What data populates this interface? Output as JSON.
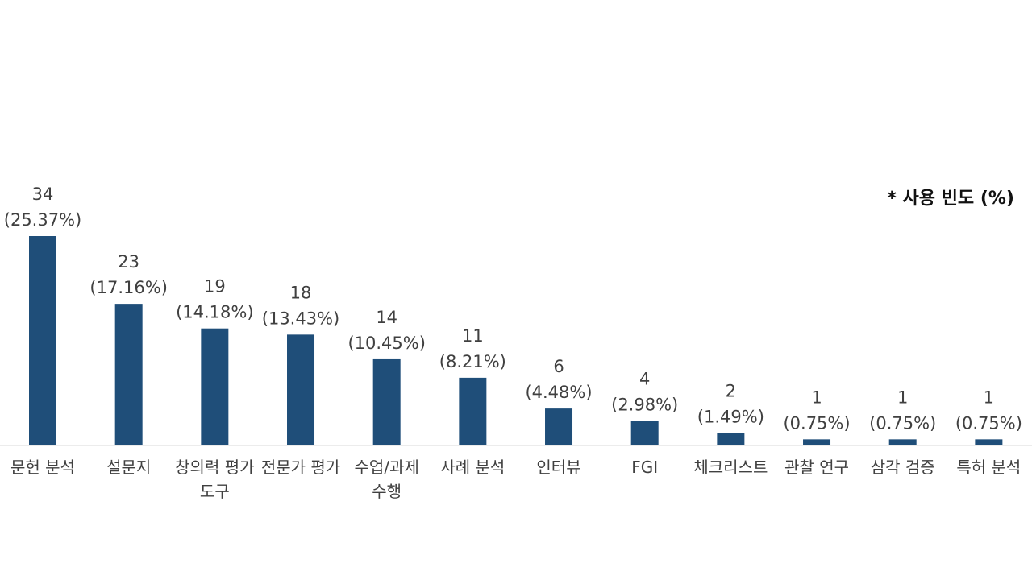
{
  "note": "* 사용 빈도 (%)",
  "colors": {
    "bar": "#1f4e79",
    "axis": "#d9d9d9",
    "text": "#404040"
  },
  "chart_data": {
    "type": "bar",
    "title": "",
    "xlabel": "",
    "ylabel": "",
    "ylim": [
      0,
      34
    ],
    "grid": false,
    "categories": [
      [
        "문헌 분석"
      ],
      [
        "설문지"
      ],
      [
        "창의력 평가",
        "도구"
      ],
      [
        "전문가 평가"
      ],
      [
        "수업/과제",
        "수행"
      ],
      [
        "사례 분석"
      ],
      [
        "인터뷰"
      ],
      [
        "FGI"
      ],
      [
        "체크리스트"
      ],
      [
        "관찰 연구"
      ],
      [
        "삼각 검증"
      ],
      [
        "특허 분석"
      ]
    ],
    "values": [
      34,
      23,
      19,
      18,
      14,
      11,
      6,
      4,
      2,
      1,
      1,
      1
    ],
    "percent_labels": [
      "(25.37%)",
      "(17.16%)",
      "(14.18%)",
      "(13.43%)",
      "(10.45%)",
      "(8.21%)",
      "(4.48%)",
      "(2.98%)",
      "(1.49%)",
      "(0.75%)",
      "(0.75%)",
      "(0.75%)"
    ]
  }
}
